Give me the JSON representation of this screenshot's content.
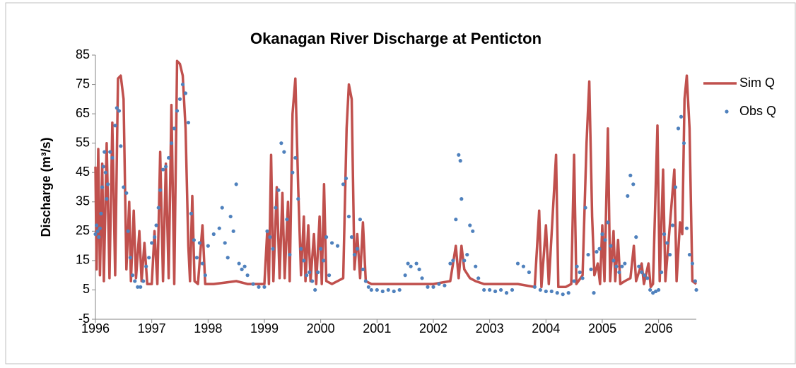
{
  "chart_data": {
    "type": "line_scatter",
    "title": "Okanagan River Discharge at Penticton",
    "y_label": "Discharge (m³/s)",
    "xlim": [
      1996,
      2006.67
    ],
    "xticks": [
      1996,
      1997,
      1998,
      1999,
      2000,
      2001,
      2002,
      2003,
      2004,
      2005,
      2006
    ],
    "ylim": [
      -5,
      85
    ],
    "yticks": [
      -5,
      5,
      15,
      25,
      35,
      45,
      55,
      65,
      75,
      85
    ],
    "grid": false,
    "legend": "right",
    "series": [
      {
        "name": "Sim Q",
        "color": "#c0504d",
        "kind": "line",
        "x": [
          1996.0,
          1996.02,
          1996.05,
          1996.08,
          1996.12,
          1996.15,
          1996.2,
          1996.25,
          1996.3,
          1996.35,
          1996.4,
          1996.45,
          1996.5,
          1996.55,
          1996.6,
          1996.63,
          1996.68,
          1996.72,
          1996.78,
          1996.82,
          1996.87,
          1996.92,
          1997.0,
          1997.05,
          1997.1,
          1997.15,
          1997.2,
          1997.25,
          1997.3,
          1997.35,
          1997.4,
          1997.45,
          1997.5,
          1997.55,
          1997.6,
          1997.65,
          1997.68,
          1997.72,
          1997.76,
          1997.82,
          1997.9,
          1997.95,
          1998.1,
          1998.3,
          1998.5,
          1998.7,
          1998.9,
          1999.0,
          1999.05,
          1999.08,
          1999.12,
          1999.16,
          1999.22,
          1999.27,
          1999.32,
          1999.36,
          1999.42,
          1999.45,
          1999.5,
          1999.55,
          1999.6,
          1999.65,
          1999.7,
          1999.73,
          1999.78,
          1999.82,
          1999.88,
          1999.92,
          1999.98,
          2000.02,
          2000.06,
          2000.1,
          2000.2,
          2000.3,
          2000.4,
          2000.46,
          2000.5,
          2000.55,
          2000.6,
          2000.65,
          2000.7,
          2000.75,
          2000.8,
          2000.9,
          2001.0,
          2001.5,
          2002.0,
          2002.3,
          2002.4,
          2002.45,
          2002.5,
          2002.55,
          2002.65,
          2002.75,
          2002.9,
          2003.5,
          2003.8,
          2003.88,
          2003.92,
          2004.0,
          2004.05,
          2004.18,
          2004.22,
          2004.35,
          2004.45,
          2004.5,
          2004.54,
          2004.65,
          2004.72,
          2004.77,
          2004.82,
          2004.86,
          2004.92,
          2004.96,
          2005.0,
          2005.04,
          2005.1,
          2005.14,
          2005.2,
          2005.23,
          2005.28,
          2005.32,
          2005.4,
          2005.5,
          2005.56,
          2005.6,
          2005.7,
          2005.74,
          2005.82,
          2005.86,
          2005.9,
          2005.98,
          2006.02,
          2006.08,
          2006.12,
          2006.28,
          2006.32,
          2006.38,
          2006.42,
          2006.46,
          2006.5,
          2006.55,
          2006.6,
          2006.67
        ],
        "values": [
          47,
          12,
          53,
          10,
          48,
          8,
          55,
          9,
          62,
          10,
          77,
          78,
          70,
          12,
          35,
          8,
          32,
          9,
          25,
          8,
          21,
          7,
          7,
          25,
          7,
          52,
          8,
          48,
          9,
          68,
          7,
          83,
          82,
          78,
          60,
          20,
          8,
          37,
          8,
          7,
          27,
          7,
          7,
          7.5,
          8,
          7,
          7,
          7,
          25,
          7,
          51,
          8,
          40,
          9,
          38,
          9,
          35,
          8,
          65,
          77,
          40,
          10,
          30,
          8,
          27,
          8,
          24,
          7,
          30,
          7,
          41,
          8,
          7,
          8,
          9,
          60,
          75,
          70,
          12,
          24,
          9,
          28,
          8,
          7,
          7,
          7,
          7,
          8,
          20,
          9,
          20,
          12,
          9,
          8,
          7,
          7,
          6,
          32,
          6,
          27,
          7,
          51,
          6,
          6,
          7,
          51,
          7,
          10,
          55,
          76,
          30,
          10,
          14,
          7,
          27,
          8,
          60,
          8,
          25,
          8,
          22,
          7,
          8,
          9,
          20,
          8,
          14,
          7,
          14,
          6,
          7,
          61,
          8,
          46,
          8,
          46,
          8,
          28,
          24,
          70,
          78,
          60,
          8,
          7
        ]
      },
      {
        "name": "Obs Q",
        "color": "#4f81bd",
        "kind": "scatter",
        "x": [
          1996.0,
          1996.02,
          1996.04,
          1996.06,
          1996.08,
          1996.1,
          1996.12,
          1996.14,
          1996.16,
          1996.18,
          1996.2,
          1996.22,
          1996.26,
          1996.3,
          1996.35,
          1996.38,
          1996.42,
          1996.45,
          1996.5,
          1996.55,
          1996.58,
          1996.62,
          1996.66,
          1996.7,
          1996.75,
          1996.8,
          1996.85,
          1996.9,
          1996.95,
          1997.0,
          1997.05,
          1997.08,
          1997.12,
          1997.15,
          1997.2,
          1997.25,
          1997.3,
          1997.35,
          1997.4,
          1997.45,
          1997.5,
          1997.55,
          1997.6,
          1997.65,
          1997.7,
          1997.75,
          1997.8,
          1997.85,
          1997.9,
          1997.95,
          1998.0,
          1998.1,
          1998.2,
          1998.25,
          1998.3,
          1998.35,
          1998.4,
          1998.45,
          1998.5,
          1998.55,
          1998.6,
          1998.65,
          1998.7,
          1998.8,
          1998.9,
          1999.0,
          1999.05,
          1999.1,
          1999.15,
          1999.2,
          1999.25,
          1999.3,
          1999.35,
          1999.4,
          1999.45,
          1999.5,
          1999.55,
          1999.6,
          1999.65,
          1999.7,
          1999.75,
          1999.8,
          1999.85,
          1999.9,
          1999.95,
          2000.0,
          2000.05,
          2000.1,
          2000.15,
          2000.2,
          2000.3,
          2000.4,
          2000.45,
          2000.5,
          2000.55,
          2000.6,
          2000.65,
          2000.7,
          2000.75,
          2000.8,
          2000.85,
          2000.9,
          2001.0,
          2001.1,
          2001.2,
          2001.3,
          2001.4,
          2001.5,
          2001.55,
          2001.6,
          2001.7,
          2001.75,
          2001.8,
          2001.9,
          2002.0,
          2002.1,
          2002.2,
          2002.3,
          2002.35,
          2002.4,
          2002.45,
          2002.48,
          2002.5,
          2002.55,
          2002.6,
          2002.65,
          2002.7,
          2002.75,
          2002.8,
          2002.9,
          2003.0,
          2003.1,
          2003.2,
          2003.3,
          2003.4,
          2003.5,
          2003.6,
          2003.7,
          2003.8,
          2003.9,
          2004.0,
          2004.1,
          2004.2,
          2004.3,
          2004.4,
          2004.5,
          2004.55,
          2004.6,
          2004.65,
          2004.7,
          2004.75,
          2004.8,
          2004.85,
          2004.9,
          2004.95,
          2005.0,
          2005.05,
          2005.1,
          2005.15,
          2005.2,
          2005.25,
          2005.3,
          2005.35,
          2005.4,
          2005.45,
          2005.5,
          2005.55,
          2005.6,
          2005.65,
          2005.7,
          2005.75,
          2005.8,
          2005.85,
          2005.9,
          2005.95,
          2006.0,
          2006.05,
          2006.1,
          2006.15,
          2006.2,
          2006.25,
          2006.3,
          2006.35,
          2006.4,
          2006.45,
          2006.5,
          2006.55,
          2006.6,
          2006.65,
          2006.67
        ],
        "values": [
          24,
          27,
          25,
          23,
          26,
          31,
          40,
          47,
          52,
          45,
          36,
          41,
          52,
          50,
          61,
          67,
          66,
          54,
          40,
          38,
          25,
          16,
          10,
          8,
          6,
          6,
          8,
          13,
          16,
          21,
          23,
          27,
          33,
          39,
          46,
          47,
          50,
          55,
          60,
          66,
          70,
          75,
          72,
          62,
          31,
          22,
          16,
          21,
          14,
          10,
          20,
          24,
          26,
          33,
          21,
          16,
          30,
          25,
          41,
          14,
          12,
          13,
          10,
          7,
          6,
          6,
          25,
          23,
          19,
          33,
          39,
          55,
          52,
          29,
          17,
          45,
          50,
          36,
          19,
          15,
          10,
          11,
          8,
          5,
          11,
          19,
          15,
          23,
          10,
          21,
          20,
          41,
          43,
          30,
          23,
          17,
          19,
          29,
          12,
          8,
          6,
          5,
          5,
          4.5,
          5,
          4.5,
          5,
          10,
          14,
          13,
          14,
          12,
          9,
          6,
          6,
          7,
          6.5,
          14,
          15,
          29,
          51,
          49,
          36,
          15,
          17,
          27,
          25,
          13,
          9,
          5,
          5,
          4.5,
          5,
          4,
          5,
          14,
          13,
          11,
          6,
          5,
          4.5,
          4.5,
          4,
          3.5,
          4,
          8,
          13,
          11,
          9,
          33,
          17,
          12,
          4,
          18,
          19,
          24,
          22,
          28,
          20,
          15,
          13,
          11,
          13,
          14,
          37,
          44,
          41,
          23,
          13,
          11,
          10,
          9,
          5,
          4,
          4.5,
          5,
          11,
          24,
          21,
          17,
          27,
          40,
          60,
          64,
          55,
          26,
          17,
          14,
          8,
          5
        ]
      }
    ]
  }
}
